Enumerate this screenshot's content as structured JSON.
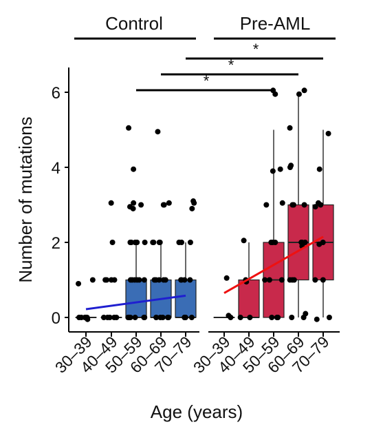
{
  "chart_data": {
    "type": "box",
    "xlabel": "Age (years)",
    "ylabel": "Number of mutations",
    "ylim": [
      0,
      6.6
    ],
    "yticks": [
      0,
      2,
      4,
      6
    ],
    "categories": [
      "30–39",
      "40–49",
      "50–59",
      "60–69",
      "70–79"
    ],
    "groups": [
      {
        "name": "Control",
        "color": "#3a6db5",
        "trend_color": "#1f1fd0",
        "trend": [
          0.22,
          0.58
        ],
        "boxes": [
          {
            "category": "30–39",
            "min": 0,
            "q1": 0,
            "median": 0,
            "q3": 0,
            "max": 0
          },
          {
            "category": "40–49",
            "min": 0,
            "q1": 0,
            "median": 0,
            "q3": 0,
            "max": 0
          },
          {
            "category": "50–59",
            "min": 0,
            "q1": 0,
            "median": 0,
            "q3": 1,
            "max": 2
          },
          {
            "category": "60–69",
            "min": 0,
            "q1": 0,
            "median": 0,
            "q3": 1,
            "max": 2
          },
          {
            "category": "70–79",
            "min": 0,
            "q1": 0,
            "median": 0,
            "q3": 1,
            "max": 2
          }
        ],
        "points": [
          [
            0,
            0
          ],
          [
            0,
            0
          ],
          [
            0,
            0
          ],
          [
            0,
            0
          ],
          [
            0,
            0
          ],
          [
            0,
            0
          ],
          [
            0,
            0.9
          ],
          [
            0,
            1.0
          ],
          [
            0,
            -0.05
          ],
          [
            1,
            0
          ],
          [
            1,
            0
          ],
          [
            1,
            0
          ],
          [
            1,
            0
          ],
          [
            1,
            0
          ],
          [
            1,
            1
          ],
          [
            1,
            1
          ],
          [
            1,
            1
          ],
          [
            1,
            1
          ],
          [
            1,
            2
          ],
          [
            1,
            3.05
          ],
          [
            2,
            0
          ],
          [
            2,
            0
          ],
          [
            2,
            0
          ],
          [
            2,
            0
          ],
          [
            2,
            0
          ],
          [
            2,
            0
          ],
          [
            2,
            1
          ],
          [
            2,
            1
          ],
          [
            2,
            1
          ],
          [
            2,
            1
          ],
          [
            2,
            1
          ],
          [
            2,
            1
          ],
          [
            2,
            2
          ],
          [
            2,
            2
          ],
          [
            2,
            2
          ],
          [
            2,
            2
          ],
          [
            2,
            2
          ],
          [
            2,
            2.9
          ],
          [
            2,
            2.95
          ],
          [
            2,
            3
          ],
          [
            2,
            3.05
          ],
          [
            2,
            3.95
          ],
          [
            2,
            5.05
          ],
          [
            3,
            0
          ],
          [
            3,
            0
          ],
          [
            3,
            0
          ],
          [
            3,
            0
          ],
          [
            3,
            0
          ],
          [
            3,
            0
          ],
          [
            3,
            1
          ],
          [
            3,
            1
          ],
          [
            3,
            1
          ],
          [
            3,
            1
          ],
          [
            3,
            1
          ],
          [
            3,
            2
          ],
          [
            3,
            2
          ],
          [
            3,
            2
          ],
          [
            3,
            2
          ],
          [
            3,
            3
          ],
          [
            3,
            3
          ],
          [
            3,
            3.05
          ],
          [
            3,
            4.95
          ],
          [
            4,
            0
          ],
          [
            4,
            0
          ],
          [
            4,
            0
          ],
          [
            4,
            0
          ],
          [
            4,
            0
          ],
          [
            4,
            1
          ],
          [
            4,
            1
          ],
          [
            4,
            1
          ],
          [
            4,
            1
          ],
          [
            4,
            2
          ],
          [
            4,
            2
          ],
          [
            4,
            2
          ],
          [
            4,
            2.9
          ],
          [
            4,
            3.05
          ],
          [
            4,
            3.1
          ]
        ]
      },
      {
        "name": "Pre-AML",
        "color": "#c8294b",
        "trend_color": "#ee1111",
        "trend": [
          0.65,
          2.15
        ],
        "boxes": [
          {
            "category": "30–39",
            "min": 0,
            "q1": 0,
            "median": 0,
            "q3": 0,
            "max": 0
          },
          {
            "category": "40–49",
            "min": 0,
            "q1": 0,
            "median": 0,
            "q3": 1,
            "max": 2
          },
          {
            "category": "50–59",
            "min": 0,
            "q1": 0,
            "median": 1,
            "q3": 2,
            "max": 5
          },
          {
            "category": "60–69",
            "min": 0,
            "q1": 1,
            "median": 2,
            "q3": 3,
            "max": 6
          },
          {
            "category": "70–79",
            "min": 0,
            "q1": 1,
            "median": 2,
            "q3": 3,
            "max": 5
          }
        ],
        "points": [
          [
            0,
            0
          ],
          [
            0,
            0.05
          ],
          [
            0,
            1.05
          ],
          [
            1,
            0
          ],
          [
            1,
            0
          ],
          [
            1,
            1
          ],
          [
            1,
            0.95
          ],
          [
            1,
            2.05
          ],
          [
            2,
            0
          ],
          [
            2,
            0
          ],
          [
            2,
            0
          ],
          [
            2,
            1
          ],
          [
            2,
            1
          ],
          [
            2,
            1
          ],
          [
            2,
            2
          ],
          [
            2,
            2
          ],
          [
            2,
            2
          ],
          [
            2,
            3
          ],
          [
            2,
            3.05
          ],
          [
            2,
            3.9
          ],
          [
            2,
            3.95
          ],
          [
            2,
            5.95
          ],
          [
            2,
            6.05
          ],
          [
            3,
            0
          ],
          [
            3,
            0
          ],
          [
            3,
            0.1
          ],
          [
            3,
            1
          ],
          [
            3,
            1
          ],
          [
            3,
            1
          ],
          [
            3,
            1.9
          ],
          [
            3,
            2
          ],
          [
            3,
            2
          ],
          [
            3,
            2
          ],
          [
            3,
            3
          ],
          [
            3,
            3
          ],
          [
            3,
            3
          ],
          [
            3,
            4
          ],
          [
            3,
            4.05
          ],
          [
            3,
            5.05
          ],
          [
            3,
            5.95
          ],
          [
            3,
            6.05
          ],
          [
            4,
            0
          ],
          [
            4,
            -0.05
          ],
          [
            4,
            1
          ],
          [
            4,
            1
          ],
          [
            4,
            1.95
          ],
          [
            4,
            2
          ],
          [
            4,
            2.95
          ],
          [
            4,
            3
          ],
          [
            4,
            3.05
          ],
          [
            4,
            3.95
          ],
          [
            4,
            4.9
          ]
        ]
      }
    ],
    "significance": [
      {
        "from": "Control 50–59",
        "to": "Pre-AML 50–59",
        "label": "*"
      },
      {
        "from": "Control 60–69",
        "to": "Pre-AML 60–69",
        "label": "*"
      },
      {
        "from": "Control 70–79",
        "to": "Pre-AML 70–79",
        "label": "*"
      }
    ]
  }
}
